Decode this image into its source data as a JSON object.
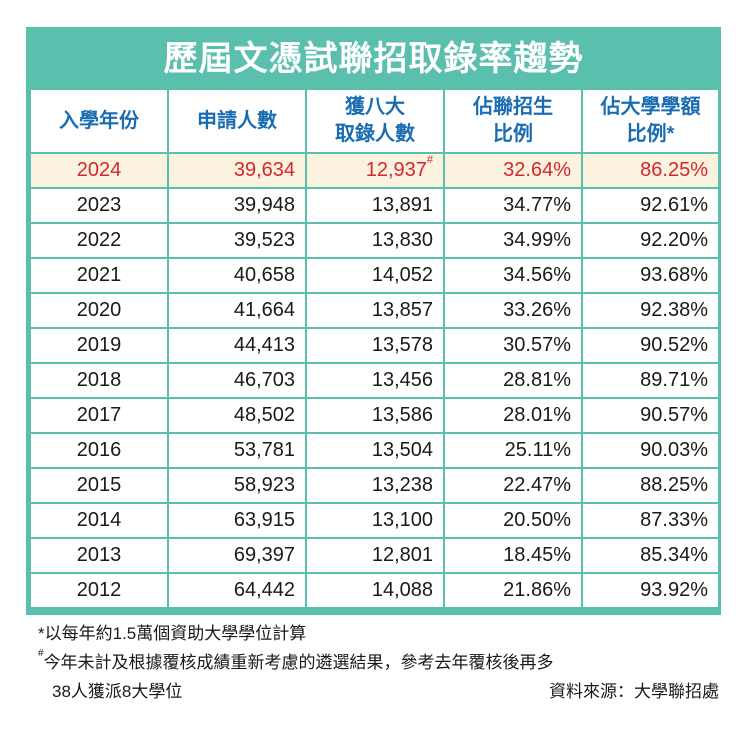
{
  "title": "歷屆文憑試聯招取錄率趨勢",
  "columns": [
    {
      "line1": "入學年份",
      "line2": ""
    },
    {
      "line1": "申請人數",
      "line2": ""
    },
    {
      "line1": "獲八大",
      "line2": "取錄人數"
    },
    {
      "line1": "佔聯招生",
      "line2": "比例"
    },
    {
      "line1": "佔大學學額",
      "line2": "比例*"
    }
  ],
  "rows": [
    {
      "year": "2024",
      "applicants": "39,634",
      "admitted": "12,937",
      "admitted_mark": "#",
      "share_jupas": "32.64%",
      "share_places": "86.25%"
    },
    {
      "year": "2023",
      "applicants": "39,948",
      "admitted": "13,891",
      "admitted_mark": "",
      "share_jupas": "34.77%",
      "share_places": "92.61%"
    },
    {
      "year": "2022",
      "applicants": "39,523",
      "admitted": "13,830",
      "admitted_mark": "",
      "share_jupas": "34.99%",
      "share_places": "92.20%"
    },
    {
      "year": "2021",
      "applicants": "40,658",
      "admitted": "14,052",
      "admitted_mark": "",
      "share_jupas": "34.56%",
      "share_places": "93.68%"
    },
    {
      "year": "2020",
      "applicants": "41,664",
      "admitted": "13,857",
      "admitted_mark": "",
      "share_jupas": "33.26%",
      "share_places": "92.38%"
    },
    {
      "year": "2019",
      "applicants": "44,413",
      "admitted": "13,578",
      "admitted_mark": "",
      "share_jupas": "30.57%",
      "share_places": "90.52%"
    },
    {
      "year": "2018",
      "applicants": "46,703",
      "admitted": "13,456",
      "admitted_mark": "",
      "share_jupas": "28.81%",
      "share_places": "89.71%"
    },
    {
      "year": "2017",
      "applicants": "48,502",
      "admitted": "13,586",
      "admitted_mark": "",
      "share_jupas": "28.01%",
      "share_places": "90.57%"
    },
    {
      "year": "2016",
      "applicants": "53,781",
      "admitted": "13,504",
      "admitted_mark": "",
      "share_jupas": "25.11%",
      "share_places": "90.03%"
    },
    {
      "year": "2015",
      "applicants": "58,923",
      "admitted": "13,238",
      "admitted_mark": "",
      "share_jupas": "22.47%",
      "share_places": "88.25%"
    },
    {
      "year": "2014",
      "applicants": "63,915",
      "admitted": "13,100",
      "admitted_mark": "",
      "share_jupas": "20.50%",
      "share_places": "87.33%"
    },
    {
      "year": "2013",
      "applicants": "69,397",
      "admitted": "12,801",
      "admitted_mark": "",
      "share_jupas": "18.45%",
      "share_places": "85.34%"
    },
    {
      "year": "2012",
      "applicants": "64,442",
      "admitted": "14,088",
      "admitted_mark": "",
      "share_jupas": "21.86%",
      "share_places": "93.92%"
    }
  ],
  "notes": {
    "star": "*以每年約1.5萬個資助大學學位計算",
    "hash_mark": "#",
    "hash_line1": "今年未計及根據覆核成績重新考慮的遴選結果，參考去年覆核後再多",
    "hash_line2": "38人獲派8大學位",
    "source": "資料來源：大學聯招處"
  },
  "colors": {
    "accent": "#5bbfae",
    "header_text": "#1b6db3",
    "highlight_text": "#d7262c",
    "highlight_bg": "#fbf2df"
  }
}
